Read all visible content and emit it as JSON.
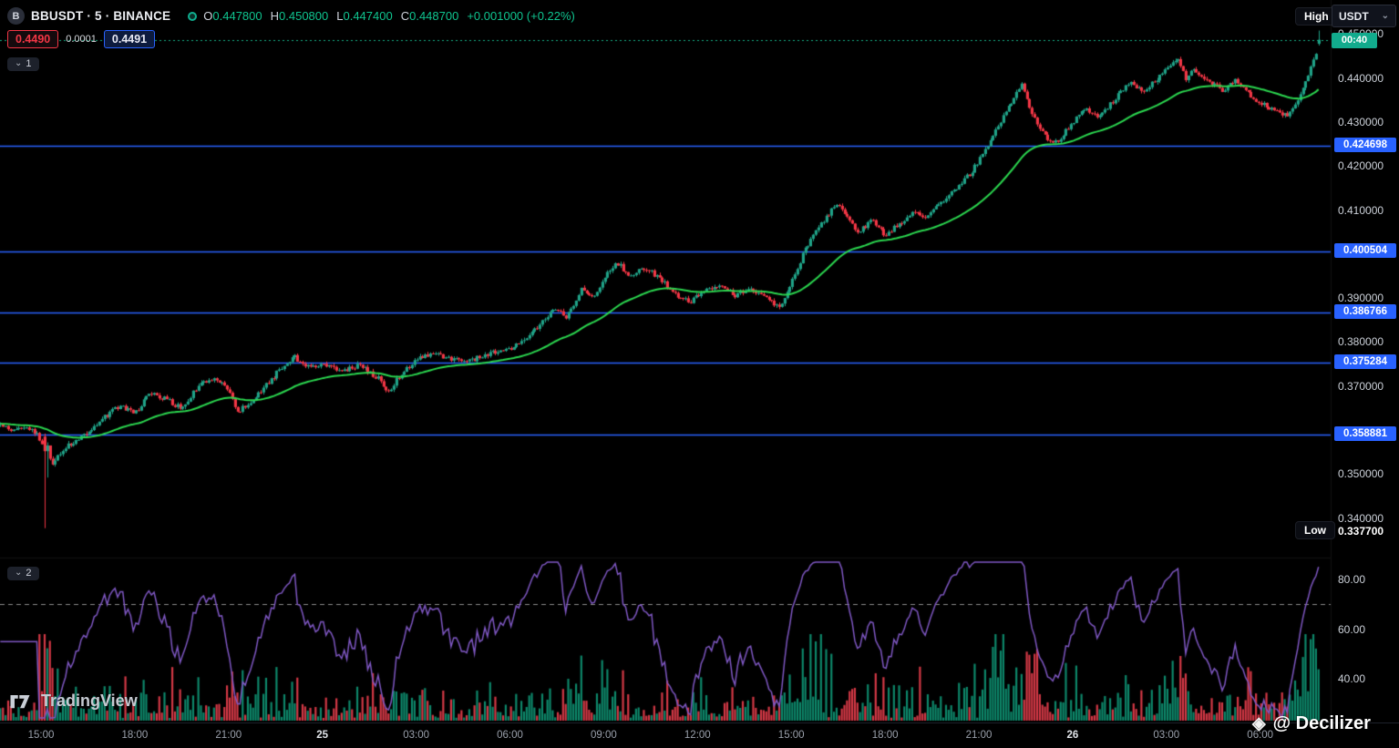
{
  "header": {
    "symbol_letter": "B",
    "title": "BBUSDT · 5 · BINANCE",
    "ohlc": {
      "o_label": "O",
      "o": "0.447800",
      "h_label": "H",
      "h": "0.450800",
      "l_label": "L",
      "l": "0.447400",
      "c_label": "C",
      "c": "0.448700",
      "change": "+0.001000 (+0.22%)"
    },
    "sell_price": "0.4490",
    "spread": "0.0001",
    "buy_price": "0.4491",
    "pane1_label": "1",
    "pane2_label": "2"
  },
  "price_scale": {
    "currency": "USDT",
    "high_label": "High",
    "low_label": "Low",
    "low_value": "0.337700",
    "countdown": "00:40"
  },
  "footer": {
    "tradingview": "TradingView",
    "watermark": "@ Decilizer"
  },
  "icons": {
    "chevron_down": "⌄",
    "decilizer": "◈"
  },
  "chart_data": {
    "type": "candlestick",
    "title": "BBUSDT · 5 · BINANCE",
    "symbol": "BBUSDT",
    "interval": "5",
    "exchange": "BINANCE",
    "interval_minutes": 5,
    "current_candle": {
      "open": 0.4478,
      "high": 0.4508,
      "low": 0.4474,
      "close": 0.4487,
      "change": "+0.001000",
      "change_pct": "+0.22%"
    },
    "session_high": 0.4508,
    "session_low": 0.3377,
    "price_view": [
      0.3335,
      0.4505
    ],
    "time_view_hours": [
      -1.3,
      40.92
    ],
    "levels": [
      {
        "value": 0.424698,
        "label": "0.424698"
      },
      {
        "value": 0.400504,
        "label": "0.400504"
      },
      {
        "value": 0.386766,
        "label": "0.386766"
      },
      {
        "value": 0.375284,
        "label": "0.375284"
      },
      {
        "value": 0.358881,
        "label": "0.358881"
      }
    ],
    "price_ticks": [
      {
        "value": 0.45,
        "label": "0.450000"
      },
      {
        "value": 0.44,
        "label": "0.440000"
      },
      {
        "value": 0.43,
        "label": "0.430000"
      },
      {
        "value": 0.42,
        "label": "0.420000"
      },
      {
        "value": 0.41,
        "label": "0.410000"
      },
      {
        "value": 0.39,
        "label": "0.390000"
      },
      {
        "value": 0.38,
        "label": "0.380000"
      },
      {
        "value": 0.37,
        "label": "0.370000"
      },
      {
        "value": 0.35,
        "label": "0.350000"
      },
      {
        "value": 0.34,
        "label": "0.340000"
      }
    ],
    "time_labels": [
      {
        "t": 0,
        "text": "15:00",
        "major": false
      },
      {
        "t": 3,
        "text": "18:00",
        "major": false
      },
      {
        "t": 6,
        "text": "21:00",
        "major": false
      },
      {
        "t": 9,
        "text": "25",
        "major": true
      },
      {
        "t": 12,
        "text": "03:00",
        "major": false
      },
      {
        "t": 15,
        "text": "06:00",
        "major": false
      },
      {
        "t": 18,
        "text": "09:00",
        "major": false
      },
      {
        "t": 21,
        "text": "12:00",
        "major": false
      },
      {
        "t": 24,
        "text": "15:00",
        "major": false
      },
      {
        "t": 27,
        "text": "18:00",
        "major": false
      },
      {
        "t": 30,
        "text": "21:00",
        "major": false
      },
      {
        "t": 33,
        "text": "26",
        "major": true
      },
      {
        "t": 36,
        "text": "03:00",
        "major": false
      },
      {
        "t": 39,
        "text": "06:00",
        "major": false
      }
    ],
    "price_keyframes": [
      [
        -1.3,
        0.3612
      ],
      [
        -0.9,
        0.36
      ],
      [
        -0.5,
        0.3608
      ],
      [
        -0.15,
        0.3592
      ],
      [
        0.08,
        0.356
      ],
      [
        0.35,
        0.3522
      ],
      [
        0.6,
        0.3548
      ],
      [
        1.0,
        0.3572
      ],
      [
        1.5,
        0.3592
      ],
      [
        2.0,
        0.3628
      ],
      [
        2.5,
        0.3656
      ],
      [
        3.0,
        0.3638
      ],
      [
        3.5,
        0.3686
      ],
      [
        4.0,
        0.367
      ],
      [
        4.5,
        0.3648
      ],
      [
        5.0,
        0.3698
      ],
      [
        5.5,
        0.3718
      ],
      [
        5.9,
        0.37
      ],
      [
        6.3,
        0.3642
      ],
      [
        6.8,
        0.3672
      ],
      [
        7.3,
        0.371
      ],
      [
        7.8,
        0.3752
      ],
      [
        8.1,
        0.3766
      ],
      [
        8.5,
        0.3742
      ],
      [
        9.0,
        0.3752
      ],
      [
        9.6,
        0.3734
      ],
      [
        10.2,
        0.3748
      ],
      [
        10.8,
        0.3716
      ],
      [
        11.1,
        0.3684
      ],
      [
        11.5,
        0.3728
      ],
      [
        12.0,
        0.3758
      ],
      [
        12.5,
        0.3776
      ],
      [
        13.0,
        0.3762
      ],
      [
        13.6,
        0.3754
      ],
      [
        14.2,
        0.3772
      ],
      [
        15.0,
        0.3786
      ],
      [
        15.5,
        0.3802
      ],
      [
        16.0,
        0.3844
      ],
      [
        16.4,
        0.3876
      ],
      [
        16.8,
        0.3858
      ],
      [
        17.3,
        0.392
      ],
      [
        17.7,
        0.3902
      ],
      [
        18.1,
        0.3956
      ],
      [
        18.4,
        0.3982
      ],
      [
        18.8,
        0.3952
      ],
      [
        19.3,
        0.397
      ],
      [
        19.8,
        0.3944
      ],
      [
        20.3,
        0.3908
      ],
      [
        20.8,
        0.3892
      ],
      [
        21.2,
        0.3918
      ],
      [
        21.7,
        0.393
      ],
      [
        22.2,
        0.3906
      ],
      [
        22.7,
        0.3924
      ],
      [
        23.2,
        0.3898
      ],
      [
        23.6,
        0.3878
      ],
      [
        24.0,
        0.3934
      ],
      [
        24.4,
        0.4004
      ],
      [
        24.8,
        0.4058
      ],
      [
        25.1,
        0.408
      ],
      [
        25.4,
        0.4116
      ],
      [
        25.8,
        0.4086
      ],
      [
        26.1,
        0.4048
      ],
      [
        26.6,
        0.4076
      ],
      [
        27.0,
        0.4044
      ],
      [
        27.5,
        0.4072
      ],
      [
        27.9,
        0.4096
      ],
      [
        28.3,
        0.4078
      ],
      [
        28.8,
        0.412
      ],
      [
        29.3,
        0.415
      ],
      [
        29.8,
        0.419
      ],
      [
        30.2,
        0.424
      ],
      [
        30.6,
        0.4286
      ],
      [
        31.0,
        0.4342
      ],
      [
        31.35,
        0.4386
      ],
      [
        31.7,
        0.4318
      ],
      [
        32.1,
        0.4268
      ],
      [
        32.5,
        0.4252
      ],
      [
        33.0,
        0.43
      ],
      [
        33.4,
        0.4334
      ],
      [
        33.8,
        0.431
      ],
      [
        34.3,
        0.4348
      ],
      [
        34.8,
        0.4392
      ],
      [
        35.3,
        0.437
      ],
      [
        35.8,
        0.4406
      ],
      [
        36.1,
        0.4432
      ],
      [
        36.35,
        0.4446
      ],
      [
        36.6,
        0.4398
      ],
      [
        36.9,
        0.442
      ],
      [
        37.3,
        0.4396
      ],
      [
        37.8,
        0.4372
      ],
      [
        38.2,
        0.4394
      ],
      [
        38.7,
        0.4358
      ],
      [
        39.2,
        0.4336
      ],
      [
        39.6,
        0.4318
      ],
      [
        39.9,
        0.4314
      ],
      [
        40.2,
        0.4352
      ],
      [
        40.5,
        0.44
      ],
      [
        40.75,
        0.445
      ],
      [
        40.92,
        0.4487
      ]
    ],
    "ma": {
      "type": "EMA",
      "period": 45,
      "color": "#2bd64f"
    },
    "rsi": {
      "period": 14,
      "color": "#7e57c2",
      "band_level": 70,
      "ticks": [
        {
          "value": 80,
          "label": "80.00"
        },
        {
          "value": 60,
          "label": "60.00"
        },
        {
          "value": 40,
          "label": "40.00"
        }
      ]
    },
    "colors": {
      "up": "#1fa287",
      "down": "#f23645",
      "level_line": "#2962ff",
      "current_line": "#17b38a",
      "vol_up": "rgba(14,150,118,0.9)",
      "vol_down": "rgba(234,62,77,0.9)"
    }
  }
}
